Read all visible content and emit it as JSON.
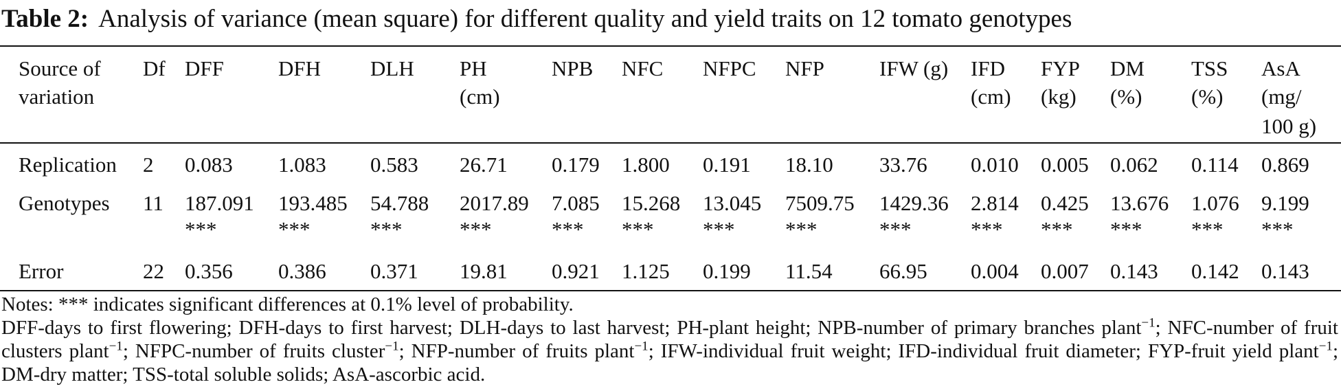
{
  "title": {
    "label": "Table 2:",
    "text": "Analysis of variance (mean square) for different quality and yield traits on 12 tomato genotypes"
  },
  "table": {
    "header": [
      [
        "Source of",
        "variation"
      ],
      [
        "Df"
      ],
      [
        "DFF"
      ],
      [
        "DFH"
      ],
      [
        "DLH"
      ],
      [
        "PH",
        "(cm)"
      ],
      [
        "NPB"
      ],
      [
        "NFC"
      ],
      [
        "NFPC"
      ],
      [
        "NFP"
      ],
      [
        "IFW (g)"
      ],
      [
        "IFD",
        "(cm)"
      ],
      [
        "FYP",
        "(kg)"
      ],
      [
        "DM",
        "(%)"
      ],
      [
        "TSS",
        "(%)"
      ],
      [
        "AsA",
        "(mg/",
        "100 g)"
      ]
    ],
    "rows": [
      {
        "cells": [
          "Replication",
          "2",
          "0.083",
          "1.083",
          "0.583",
          "26.71",
          "0.179",
          "1.800",
          "0.191",
          "18.10",
          "33.76",
          "0.010",
          "0.005",
          "0.062",
          "0.114",
          "0.869"
        ]
      },
      {
        "cells": [
          "Genotypes",
          "11",
          "187.091",
          "193.485",
          "54.788",
          "2017.89",
          "7.085",
          "15.268",
          "13.045",
          "7509.75",
          "1429.36",
          "2.814",
          "0.425",
          "13.676",
          "1.076",
          "9.199"
        ],
        "marks": [
          "***",
          "***",
          "***",
          "***",
          "***",
          "***",
          "***",
          "***",
          "***",
          "***",
          "***",
          "***",
          "***",
          "***"
        ]
      },
      {
        "cells": [
          "Error",
          "22",
          "0.356",
          "0.386",
          "0.371",
          "19.81",
          "0.921",
          "1.125",
          "0.199",
          "11.54",
          "66.95",
          "0.004",
          "0.007",
          "0.143",
          "0.142",
          "0.143"
        ]
      }
    ]
  },
  "notes": {
    "significance": "Notes: *** indicates significant differences at 0.1% level of probability.",
    "abbreviations": [
      {
        "text": "DFF-days to first flowering; DFH-days to first harvest; DLH-days to last harvest; PH-plant height; NPB-number of primary branches plant"
      },
      {
        "sup": "−1"
      },
      {
        "text": "; NFC-number of fruit clusters plant"
      },
      {
        "sup": "−1"
      },
      {
        "text": "; NFPC-number of fruits cluster"
      },
      {
        "sup": "−1"
      },
      {
        "text": "; NFP-number of fruits plant"
      },
      {
        "sup": "−1"
      },
      {
        "text": "; IFW-individual fruit weight; IFD-individual fruit diameter; FYP-fruit yield plant"
      },
      {
        "sup": "−1"
      },
      {
        "text": "; DM-dry matter; TSS-total soluble solids; AsA-ascorbic acid."
      }
    ]
  }
}
